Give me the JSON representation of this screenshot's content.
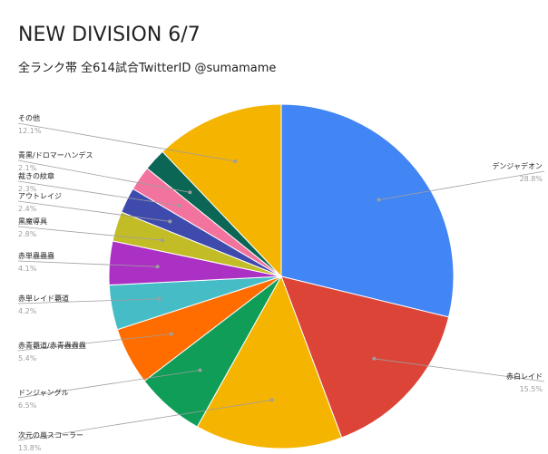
{
  "title": "NEW DIVISION 6/7",
  "subtitle": "全ランク帯 全614試合TwitterID @sumamame",
  "chart_data": {
    "type": "pie",
    "unit": "%",
    "slices": [
      {
        "label": "デンジャデオン",
        "value": 28.8,
        "pct_label": "28.8%",
        "color": "#4285f4",
        "side": "right"
      },
      {
        "label": "赤白レイド",
        "value": 15.5,
        "pct_label": "15.5%",
        "color": "#db4437",
        "side": "right"
      },
      {
        "label": "次元の嵐スコーラー",
        "value": 13.8,
        "pct_label": "13.8%",
        "color": "#f4b400",
        "side": "left"
      },
      {
        "label": "ドンジャングル",
        "value": 6.5,
        "pct_label": "6.5%",
        "color": "#0f9d58",
        "side": "left"
      },
      {
        "label": "赤青覇道/赤青蟲蟲蟲",
        "value": 5.4,
        "pct_label": "5.4%",
        "color": "#ff6d00",
        "side": "left"
      },
      {
        "label": "赤単レイド覇道",
        "value": 4.2,
        "pct_label": "4.2%",
        "color": "#46bdc6",
        "side": "left"
      },
      {
        "label": "赤単蟲蟲蟲",
        "value": 4.1,
        "pct_label": "4.1%",
        "color": "#ab30c4",
        "side": "left"
      },
      {
        "label": "黒魔導具",
        "value": 2.8,
        "pct_label": "2.8%",
        "color": "#c2bc27",
        "side": "left"
      },
      {
        "label": "アウトレイジ",
        "value": 2.4,
        "pct_label": "2.4%",
        "color": "#3f4aad",
        "side": "left"
      },
      {
        "label": "裁きの紋章",
        "value": 2.3,
        "pct_label": "2.3%",
        "color": "#f2739e",
        "side": "left"
      },
      {
        "label": "青黒/ドロマーハンデス",
        "value": 2.1,
        "pct_label": "2.1%",
        "color": "#0b6655",
        "side": "left"
      },
      {
        "label": "その他",
        "value": 12.1,
        "pct_label": "12.1%",
        "color": "#f4b400",
        "side": "left"
      }
    ]
  }
}
